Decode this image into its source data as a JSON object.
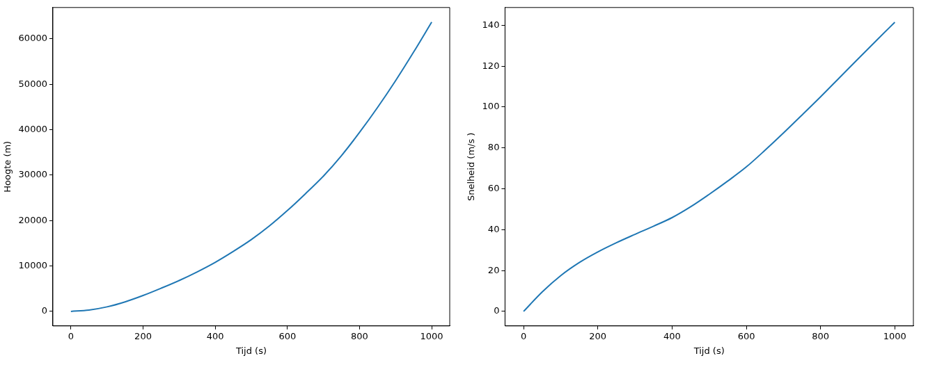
{
  "chart_data": [
    {
      "type": "line",
      "xlabel": "Tijd (s)",
      "ylabel": "Hoogte (m)",
      "x": [
        0,
        50,
        100,
        150,
        200,
        250,
        300,
        350,
        400,
        450,
        500,
        550,
        600,
        650,
        700,
        750,
        800,
        850,
        900,
        950,
        1000
      ],
      "series": [
        {
          "color": "#1f77b4",
          "values": [
            0,
            300,
            1000,
            2100,
            3500,
            5100,
            6800,
            8700,
            10800,
            13200,
            15800,
            18800,
            22200,
            25900,
            29800,
            34300,
            39400,
            44900,
            50800,
            57100,
            63700
          ]
        }
      ],
      "xlim": [
        -50,
        1050
      ],
      "ylim": [
        -3200,
        66900
      ],
      "xticks": [
        0,
        200,
        400,
        600,
        800,
        1000
      ],
      "yticks": [
        0,
        10000,
        20000,
        30000,
        40000,
        50000,
        60000
      ],
      "grid": false,
      "legend": false,
      "marker": "none",
      "line_style": "solid"
    },
    {
      "type": "line",
      "xlabel": "Tijd (s)",
      "ylabel": "Snelheid (m/s )",
      "x": [
        0,
        50,
        100,
        150,
        200,
        250,
        300,
        350,
        400,
        450,
        500,
        550,
        600,
        650,
        700,
        750,
        800,
        850,
        900,
        950,
        1000
      ],
      "series": [
        {
          "color": "#1f77b4",
          "values": [
            0,
            9.5,
            17.5,
            23.9,
            29.1,
            33.6,
            37.7,
            41.7,
            45.9,
            51.2,
            57.3,
            63.8,
            70.7,
            78.8,
            87.3,
            96.1,
            105,
            114.2,
            123.4,
            132.5,
            141.5
          ]
        }
      ],
      "xlim": [
        -50,
        1050
      ],
      "ylim": [
        -7.1,
        148.7
      ],
      "xticks": [
        0,
        200,
        400,
        600,
        800,
        1000
      ],
      "yticks": [
        0,
        20,
        40,
        60,
        80,
        100,
        120,
        140
      ],
      "grid": false,
      "legend": false,
      "marker": "none",
      "line_style": "solid"
    }
  ]
}
